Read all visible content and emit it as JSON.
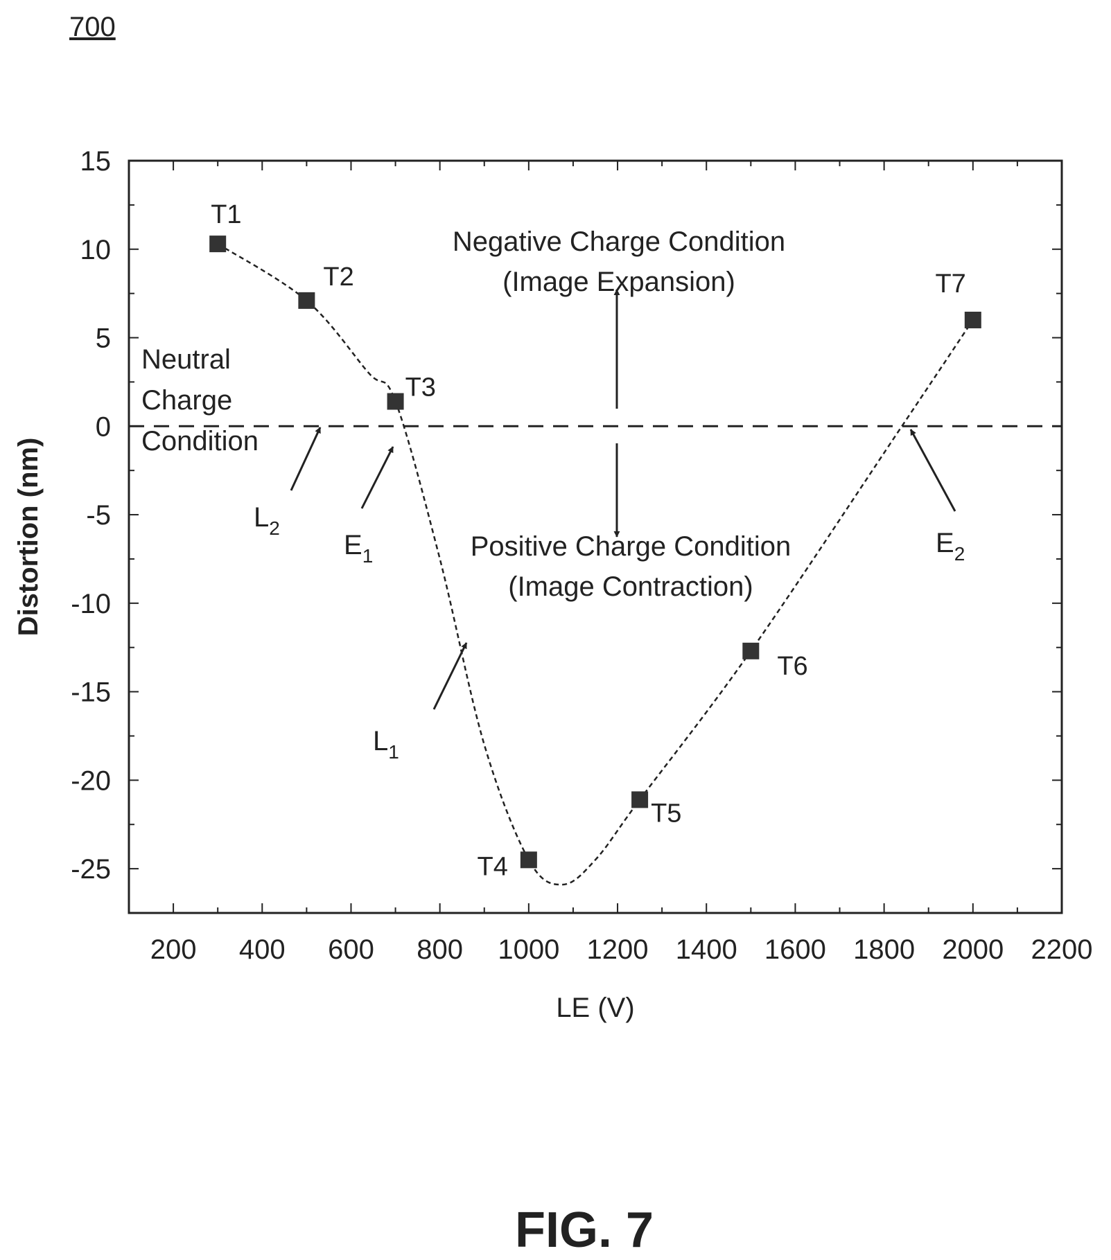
{
  "figure_ref": "700",
  "figure_label": "FIG. 7",
  "chart_data": {
    "type": "scatter",
    "xlabel": "LE (V)",
    "ylabel": "Distortion (nm)",
    "xlim": [
      100,
      2200
    ],
    "ylim": [
      -27.5,
      15
    ],
    "x_ticks": [
      200,
      400,
      600,
      800,
      1000,
      1200,
      1400,
      1600,
      1800,
      2000,
      2200
    ],
    "y_ticks": [
      15,
      10,
      5,
      0,
      -5,
      -10,
      -15,
      -20,
      -25
    ],
    "grid": false,
    "points": [
      {
        "label": "T1",
        "x": 300,
        "y": 10.3
      },
      {
        "label": "T2",
        "x": 500,
        "y": 7.1
      },
      {
        "label": "T3",
        "x": 700,
        "y": 1.4
      },
      {
        "label": "T4",
        "x": 1000,
        "y": -24.5
      },
      {
        "label": "T5",
        "x": 1250,
        "y": -21.1
      },
      {
        "label": "T6",
        "x": 1500,
        "y": -12.7
      },
      {
        "label": "T7",
        "x": 2000,
        "y": 6.0
      }
    ],
    "fit_curve": {
      "style": "dashed",
      "x": [
        300,
        500,
        640,
        700,
        800,
        900,
        1000,
        1075,
        1150,
        1250,
        1500,
        1840,
        2000
      ],
      "y": [
        10.3,
        7.1,
        3.0,
        1.4,
        -7.5,
        -18.0,
        -24.5,
        -25.9,
        -24.5,
        -21.1,
        -12.7,
        0.0,
        6.0
      ]
    },
    "reference_line": {
      "y": 0,
      "style": "dashed"
    },
    "annotations": {
      "negative_line1": "Negative Charge Condition",
      "negative_line2": "(Image Expansion)",
      "positive_line1": "Positive Charge Condition",
      "positive_line2": "(Image Contraction)",
      "neutral_line1": "Neutral",
      "neutral_line2": "Charge",
      "neutral_line3": "Condition",
      "L1": {
        "main": "L",
        "sub": "1"
      },
      "L2": {
        "main": "L",
        "sub": "2"
      },
      "E1": {
        "main": "E",
        "sub": "1"
      },
      "E2": {
        "main": "E",
        "sub": "2"
      }
    }
  }
}
